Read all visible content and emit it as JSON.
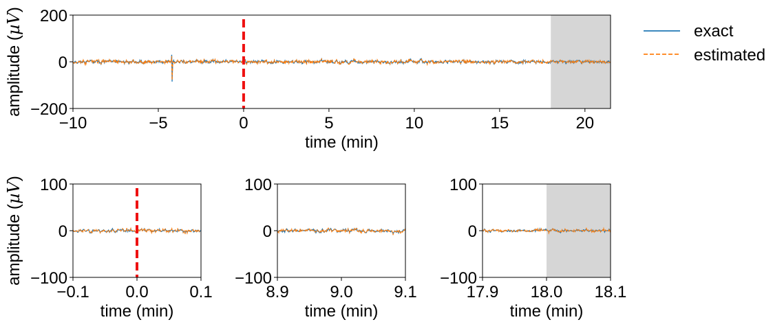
{
  "colors": {
    "exact": "#1f77b4",
    "estimated": "#ff7f0e",
    "marker": "#ee1111",
    "shade": "#d6d6d6"
  },
  "legend": {
    "exact": "exact",
    "estimated": "estimated",
    "placement": "right"
  },
  "chart_data": [
    {
      "type": "line",
      "xlabel": "time (min)",
      "ylabel": "amplitude ($\\mu V$)",
      "xlim": [
        -10,
        21.5
      ],
      "ylim": [
        -200,
        200
      ],
      "xticks": [
        -10,
        -5,
        0,
        5,
        10,
        15,
        20
      ],
      "xtick_labels": [
        "−10",
        "−5",
        "0",
        "5",
        "10",
        "15",
        "20"
      ],
      "yticks": [
        -200,
        0,
        200
      ],
      "ytick_labels": [
        "−200",
        "0",
        "200"
      ],
      "marker_line_x": 0,
      "shaded_region": [
        18,
        21.5
      ],
      "grid": false,
      "series": [
        {
          "name": "exact",
          "description": "noise-like EEG trace, mostly within ±20 µV, spike to about −85 µV near −4.2 min"
        },
        {
          "name": "estimated",
          "style": "dashed"
        }
      ]
    },
    {
      "type": "line",
      "xlabel": "time (min)",
      "ylabel": "amplitude ($\\mu V$)",
      "xlim": [
        -0.1,
        0.1
      ],
      "ylim": [
        -100,
        100
      ],
      "xticks": [
        -0.1,
        0.0,
        0.1
      ],
      "xtick_labels": [
        "−0.1",
        "0.0",
        "0.1"
      ],
      "yticks": [
        -100,
        0,
        100
      ],
      "ytick_labels": [
        "−100",
        "0",
        "100"
      ],
      "marker_line_x": 0,
      "grid": false
    },
    {
      "type": "line",
      "xlabel": "time (min)",
      "ylabel": "",
      "xlim": [
        8.9,
        9.1
      ],
      "ylim": [
        -100,
        100
      ],
      "xticks": [
        8.9,
        9.0,
        9.1
      ],
      "xtick_labels": [
        "8.9",
        "9.0",
        "9.1"
      ],
      "yticks": [
        -100,
        0,
        100
      ],
      "ytick_labels": [
        "−100",
        "0",
        "100"
      ],
      "grid": false
    },
    {
      "type": "line",
      "xlabel": "time (min)",
      "ylabel": "",
      "xlim": [
        17.9,
        18.1
      ],
      "ylim": [
        -100,
        100
      ],
      "xticks": [
        17.9,
        18.0,
        18.1
      ],
      "xtick_labels": [
        "17.9",
        "18.0",
        "18.1"
      ],
      "yticks": [
        -100,
        0,
        100
      ],
      "ytick_labels": [
        "−100",
        "0",
        "100"
      ],
      "shaded_region": [
        18.0,
        18.1
      ],
      "grid": false
    }
  ]
}
